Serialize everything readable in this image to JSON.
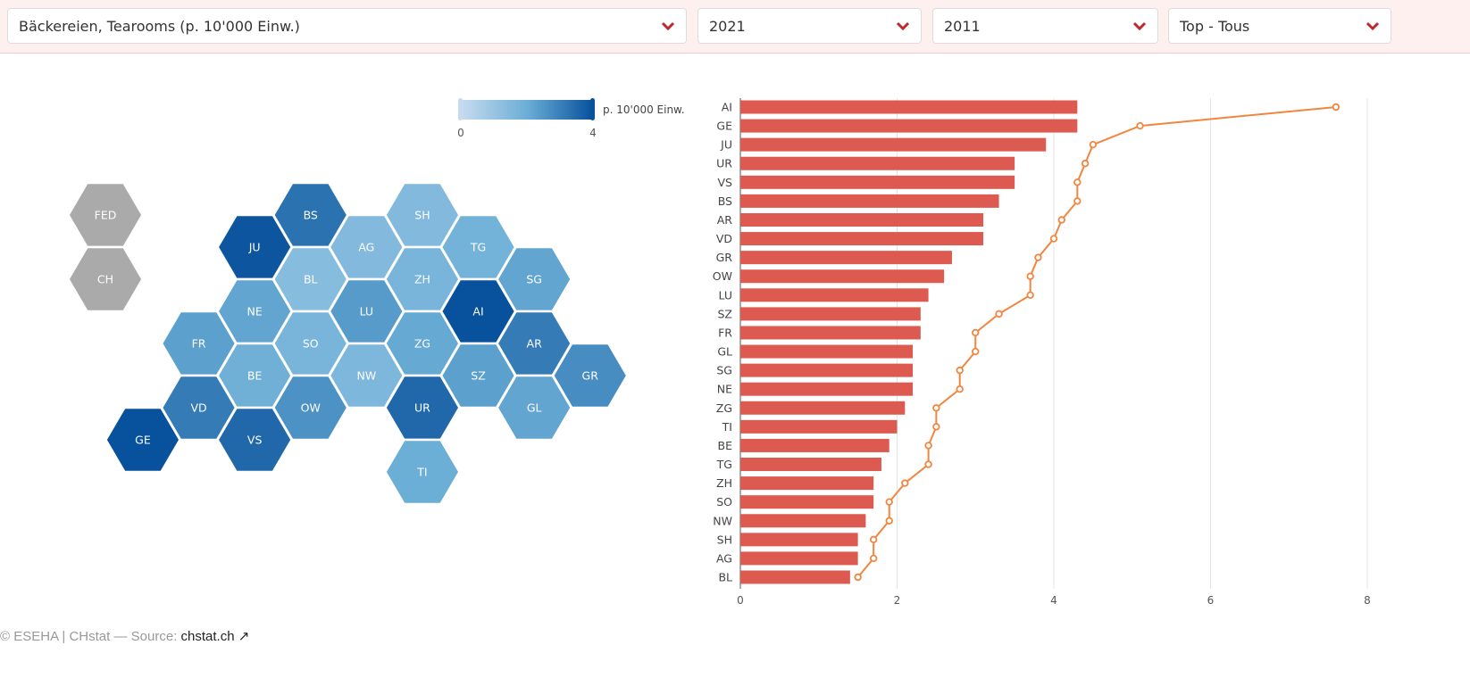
{
  "filters": [
    {
      "value": "Bäckereien, Tearooms (p. 10'000 Einw.)",
      "icon": "chevron-down-icon"
    },
    {
      "value": "2021",
      "icon": "chevron-down-icon"
    },
    {
      "value": "2011",
      "icon": "chevron-down-icon"
    },
    {
      "value": "Top - Tous",
      "icon": "chevron-down-icon"
    }
  ],
  "colors": {
    "accent": "#c0282d",
    "bar": "#dc5a50",
    "line": "#f08640",
    "hex_min": "#c6dbef",
    "hex_max": "#08519c",
    "hex_none": "#aaaaaa"
  },
  "legend": {
    "min": "0",
    "max": "4",
    "unit": "p. 10'000 Einw."
  },
  "hexmap": {
    "no_data": [
      "FED",
      "CH"
    ]
  },
  "chart_data": {
    "type": "bar",
    "categories": [
      "AI",
      "GE",
      "JU",
      "UR",
      "VS",
      "BS",
      "AR",
      "VD",
      "GR",
      "OW",
      "LU",
      "SZ",
      "FR",
      "GL",
      "SG",
      "NE",
      "ZG",
      "TI",
      "BE",
      "TG",
      "ZH",
      "SO",
      "NW",
      "SH",
      "AG",
      "BL"
    ],
    "series": [
      {
        "name": "2021",
        "type": "bar",
        "values": [
          4.3,
          4.3,
          3.9,
          3.5,
          3.5,
          3.3,
          3.1,
          3.1,
          2.7,
          2.6,
          2.4,
          2.3,
          2.3,
          2.2,
          2.2,
          2.2,
          2.1,
          2.0,
          1.9,
          1.8,
          1.7,
          1.7,
          1.6,
          1.5,
          1.5,
          1.4
        ]
      },
      {
        "name": "2011",
        "type": "line",
        "values": [
          7.6,
          5.1,
          4.5,
          4.4,
          4.3,
          4.3,
          4.1,
          4.0,
          3.8,
          3.7,
          3.7,
          3.3,
          3.0,
          3.0,
          2.8,
          2.8,
          2.5,
          2.5,
          2.4,
          2.4,
          2.1,
          1.9,
          1.9,
          1.7,
          1.7,
          1.5
        ]
      }
    ],
    "xlim": [
      0,
      8
    ],
    "xticks": [
      "0",
      "2",
      "4",
      "6",
      "8"
    ],
    "grid": true
  },
  "footer": {
    "text": "© ESEHA | CHstat — Source: ",
    "link": "chstat.ch ↗"
  }
}
